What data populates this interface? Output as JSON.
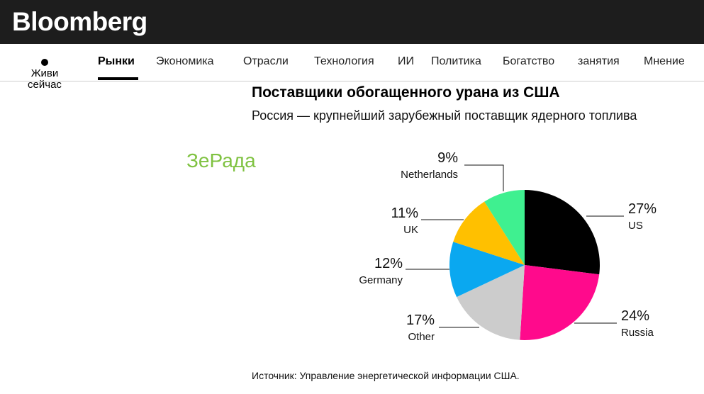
{
  "brand": {
    "logo_text": "Bloomberg"
  },
  "nav": {
    "live_label": "Живи сейчас",
    "items": [
      {
        "label": "Рынки",
        "active": true
      },
      {
        "label": "Экономика"
      },
      {
        "label": "Отрасли"
      },
      {
        "label": "Технология"
      },
      {
        "label": "ИИ"
      },
      {
        "label": "Политика"
      },
      {
        "label": "Богатство"
      },
      {
        "label": "занятия"
      },
      {
        "label": "Мнение"
      }
    ]
  },
  "watermark": "ЗеРада",
  "source": "Источник: Управление энергетической информации США.",
  "chart_data": {
    "type": "pie",
    "title": "Поставщики обогащенного урана из США",
    "subtitle": "Россия — крупнейший зарубежный поставщик ядерного топлива",
    "slices": [
      {
        "label": "US",
        "value": 27,
        "value_label": "27%",
        "color": "#000000"
      },
      {
        "label": "Russia",
        "value": 24,
        "value_label": "24%",
        "color": "#ff0a8c"
      },
      {
        "label": "Other",
        "value": 17,
        "value_label": "17%",
        "color": "#cccccc"
      },
      {
        "label": "Germany",
        "value": 12,
        "value_label": "12%",
        "color": "#0aa8f0"
      },
      {
        "label": "UK",
        "value": 11,
        "value_label": "11%",
        "color": "#ffc000"
      },
      {
        "label": "Netherlands",
        "value": 9,
        "value_label": "9%",
        "color": "#3ff090"
      }
    ]
  }
}
